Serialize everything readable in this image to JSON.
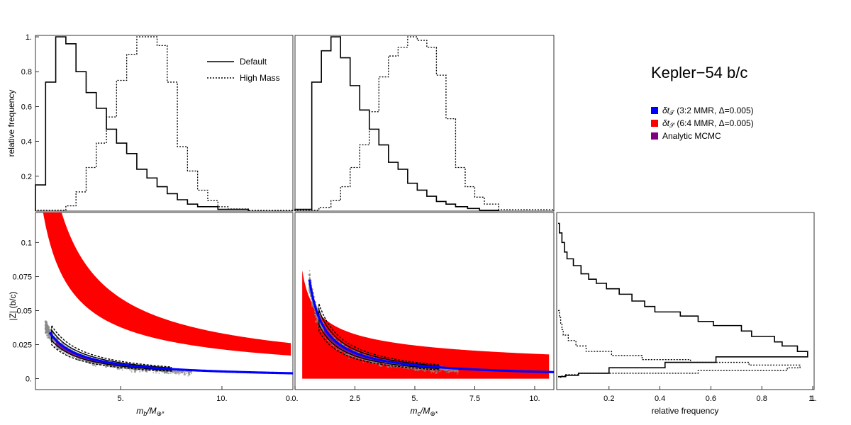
{
  "chart_data": [
    {
      "panel": "mb-histogram",
      "type": "histogram",
      "ylabel": "relative frequency",
      "xlim": [
        0.8,
        13.5
      ],
      "ylim": [
        0,
        1.0
      ],
      "yticks": [
        "0.2",
        "0.4",
        "0.6",
        "0.8",
        "1."
      ],
      "legend": [
        "Default",
        "High Mass"
      ],
      "series": [
        {
          "name": "Default",
          "edges": [
            0.8,
            1.3,
            1.8,
            2.3,
            2.8,
            3.3,
            3.8,
            4.3,
            4.8,
            5.3,
            5.8,
            6.3,
            6.8,
            7.3,
            7.8,
            8.3,
            8.8,
            9.8,
            11.3
          ],
          "values": [
            0.15,
            0.74,
            1.0,
            0.96,
            0.8,
            0.68,
            0.59,
            0.47,
            0.39,
            0.33,
            0.24,
            0.19,
            0.14,
            0.1,
            0.065,
            0.04,
            0.025,
            0.01
          ]
        },
        {
          "name": "High Mass",
          "edges": [
            0.8,
            2.3,
            2.8,
            3.3,
            3.8,
            4.3,
            4.8,
            5.3,
            5.8,
            6.3,
            6.8,
            7.3,
            7.8,
            8.3,
            8.8,
            9.3,
            9.8,
            10.3,
            11.3,
            13.5
          ],
          "values": [
            0.005,
            0.03,
            0.11,
            0.25,
            0.39,
            0.54,
            0.75,
            0.9,
            1.0,
            1.0,
            0.95,
            0.74,
            0.37,
            0.23,
            0.12,
            0.06,
            0.025,
            0.012,
            0.004
          ]
        }
      ]
    },
    {
      "panel": "mc-histogram",
      "type": "histogram",
      "xlim": [
        0.0,
        10.8
      ],
      "ylim": [
        0,
        1.0
      ],
      "series": [
        {
          "name": "Default",
          "edges": [
            0.0,
            0.7,
            1.1,
            1.5,
            1.9,
            2.3,
            2.7,
            3.1,
            3.5,
            3.9,
            4.3,
            4.7,
            5.1,
            5.5,
            5.9,
            6.3,
            6.7,
            7.2,
            7.7,
            8.5
          ],
          "values": [
            0.01,
            0.74,
            0.92,
            1.0,
            0.88,
            0.72,
            0.58,
            0.47,
            0.38,
            0.28,
            0.24,
            0.16,
            0.12,
            0.085,
            0.055,
            0.04,
            0.025,
            0.015,
            0.005
          ]
        },
        {
          "name": "High Mass",
          "edges": [
            0.0,
            1.0,
            1.5,
            1.9,
            2.3,
            2.7,
            3.1,
            3.5,
            3.9,
            4.3,
            4.7,
            5.1,
            5.5,
            5.9,
            6.3,
            6.7,
            7.1,
            7.5,
            7.9,
            8.5,
            10.8
          ],
          "values": [
            0.005,
            0.02,
            0.06,
            0.14,
            0.25,
            0.38,
            0.57,
            0.77,
            0.89,
            0.94,
            1.0,
            0.98,
            0.94,
            0.78,
            0.53,
            0.25,
            0.14,
            0.08,
            0.04,
            0.008
          ]
        }
      ]
    },
    {
      "panel": "mb-vs-Z",
      "type": "scatter",
      "xlabel_base": "m",
      "xlabel_sub": "b",
      "xlabel_den": "M",
      "xlabel_den_sub": "⊕*",
      "ylabel": "|Z| (b/c)",
      "xlim": [
        0.8,
        13.5
      ],
      "ylim": [
        -0.008,
        0.122
      ],
      "xticks": [
        {
          "value": 5,
          "label": "5."
        },
        {
          "value": 10,
          "label": "10."
        }
      ],
      "yticks": [
        {
          "value": 0,
          "label": "0."
        },
        {
          "value": 0.025,
          "label": "0.025"
        },
        {
          "value": 0.05,
          "label": "0.05"
        },
        {
          "value": 0.075,
          "label": "0.075"
        },
        {
          "value": 0.1,
          "label": "0.1"
        }
      ],
      "blue_curve": {
        "k": 0.0505,
        "p": 0.977,
        "x": [
          1.5,
          13.5
        ]
      },
      "red_band": {
        "x": [
          1.0,
          13.4
        ],
        "upper": {
          "k": 0.225,
          "p": 0.83
        },
        "lower": {
          "k": 0.139,
          "p": 0.81
        }
      },
      "cloud_x": [
        1.3,
        8.5
      ],
      "contours_x": [
        1.6,
        7.5
      ]
    },
    {
      "panel": "mc-vs-Z",
      "type": "scatter",
      "xlabel_base": "m",
      "xlabel_sub": "c",
      "xlabel_den": "M",
      "xlabel_den_sub": "⊕*",
      "xlim": [
        0.0,
        10.8
      ],
      "ylim": [
        -0.008,
        0.122
      ],
      "xticks": [
        {
          "value": 0,
          "label": "0."
        },
        {
          "value": 2.5,
          "label": "2.5"
        },
        {
          "value": 5,
          "label": "5."
        },
        {
          "value": 7.5,
          "label": "7.5"
        },
        {
          "value": 10,
          "label": "10."
        }
      ],
      "blue_curve": {
        "k": 0.045,
        "p": 0.94,
        "x": [
          0.6,
          10.8
        ]
      },
      "red_band": {
        "x": [
          0.3,
          10.6
        ],
        "upper": {
          "k": 0.048,
          "p": 0.42
        },
        "lower": {
          "k": 0.0,
          "p": 1.0
        }
      },
      "cloud_x": [
        0.6,
        6.8
      ],
      "contours_x": [
        1.0,
        6.0
      ]
    },
    {
      "panel": "Z-histogram",
      "type": "histogram",
      "orientation": "horizontal",
      "xlabel": "relative frequency",
      "xlim": [
        0,
        1.0
      ],
      "ylim": [
        -0.008,
        0.122
      ],
      "xticks": [
        {
          "value": 0.2,
          "label": "0.2"
        },
        {
          "value": 0.4,
          "label": "0.4"
        },
        {
          "value": 0.6,
          "label": "0.6"
        },
        {
          "value": 0.8,
          "label": "0.8"
        },
        {
          "value": 1.0,
          "label": "1."
        }
      ],
      "series": [
        {
          "name": "Default",
          "edges": [
            0.114,
            0.107,
            0.1,
            0.093,
            0.088,
            0.083,
            0.077,
            0.073,
            0.07,
            0.066,
            0.062,
            0.057,
            0.053,
            0.049,
            0.046,
            0.042,
            0.039,
            0.035,
            0.031,
            0.027,
            0.024,
            0.02,
            0.016,
            0.012,
            0.008,
            0.004,
            0.0025,
            0.0015
          ],
          "values": [
            0.005,
            0.015,
            0.025,
            0.035,
            0.06,
            0.09,
            0.12,
            0.15,
            0.19,
            0.24,
            0.29,
            0.34,
            0.38,
            0.48,
            0.55,
            0.61,
            0.72,
            0.76,
            0.85,
            0.88,
            0.94,
            0.98,
            0.62,
            0.42,
            0.2,
            0.08,
            0.03
          ]
        },
        {
          "name": "High Mass",
          "edges": [
            0.05,
            0.045,
            0.04,
            0.036,
            0.032,
            0.028,
            0.024,
            0.02,
            0.017,
            0.014,
            0.012,
            0.01,
            0.008,
            0.006,
            0.004,
            0.003,
            0.002,
            0.001
          ],
          "values": [
            0.005,
            0.01,
            0.015,
            0.02,
            0.04,
            0.07,
            0.11,
            0.21,
            0.33,
            0.52,
            0.75,
            0.95,
            0.9,
            0.55,
            0.08,
            0.03,
            0.015
          ]
        }
      ]
    }
  ],
  "title": "Kepler−54 b/c",
  "legend_main": [
    {
      "label": "Default",
      "style": "solid"
    },
    {
      "label": "High Mass",
      "style": "dotted"
    }
  ],
  "legend_colors": [
    {
      "pre": "δt",
      "sub": "𝒯",
      "post": " (3:2 MMR, Δ=0.005)",
      "color": "#0000ff"
    },
    {
      "pre": "δt",
      "sub": "𝒮",
      "post": " (6:4 MMR, Δ=0.005)",
      "color": "#ff0000"
    },
    {
      "pre": "Analytic MCMC",
      "sub": "",
      "post": "",
      "color": "#800080"
    }
  ],
  "colors": {
    "blue": "#0000ff",
    "red": "#ff0000",
    "purple": "#800080",
    "cloud": "#8a8a8a"
  },
  "hist_tick_clip": "1.",
  "mc_tick_clip": "0."
}
